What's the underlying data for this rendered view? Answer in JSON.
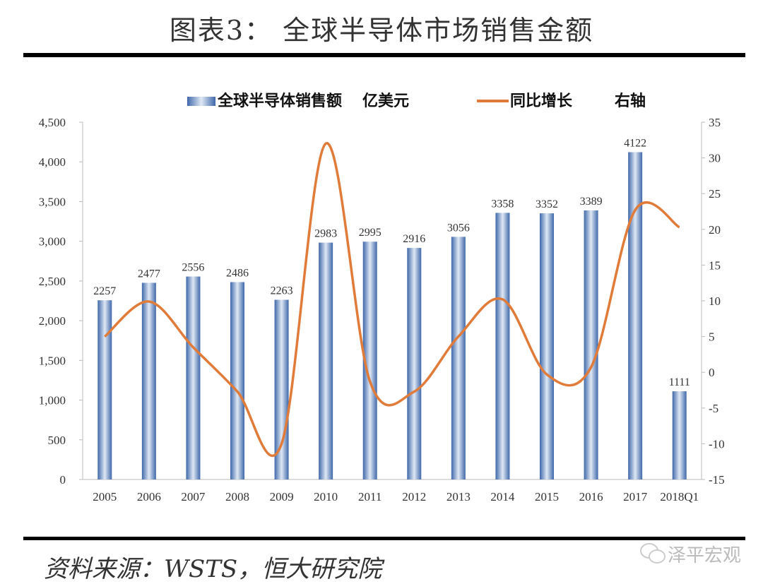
{
  "title": "图表3： 全球半导体市场销售金额",
  "source": "资料来源：WSTS，恒大研究院",
  "watermark": "泽平宏观",
  "chart_data": {
    "type": "bar+line",
    "categories": [
      "2005",
      "2006",
      "2007",
      "2008",
      "2009",
      "2010",
      "2011",
      "2012",
      "2013",
      "2014",
      "2015",
      "2016",
      "2017",
      "2018Q1"
    ],
    "series": [
      {
        "name": "全球半导体销售额",
        "unit_label": "亿美元",
        "type": "bar",
        "axis": "left",
        "color": "#4a72b0",
        "values": [
          2257,
          2477,
          2556,
          2486,
          2263,
          2983,
          2995,
          2916,
          3056,
          3358,
          3352,
          3389,
          4122,
          1111
        ]
      },
      {
        "name": "同比增长",
        "unit_label": "右轴",
        "type": "line",
        "axis": "right",
        "color": "#e07b39",
        "values": [
          5,
          9.9,
          3.5,
          -2.7,
          -10,
          32,
          -1.3,
          -2.7,
          5,
          10.2,
          -0.3,
          0.7,
          22.7,
          20.3
        ]
      }
    ],
    "left_axis": {
      "ylim": [
        0,
        4500
      ],
      "ticks": [
        "0",
        "500",
        "1,000",
        "1,500",
        "2,000",
        "2,500",
        "3,000",
        "3,500",
        "4,000",
        "4,500"
      ]
    },
    "right_axis": {
      "ylim": [
        -15,
        35
      ],
      "ticks": [
        "-15",
        "-10",
        "-5",
        "0",
        "5",
        "10",
        "15",
        "20",
        "25",
        "30",
        "35"
      ]
    },
    "grid": false,
    "legend_position": "top"
  }
}
